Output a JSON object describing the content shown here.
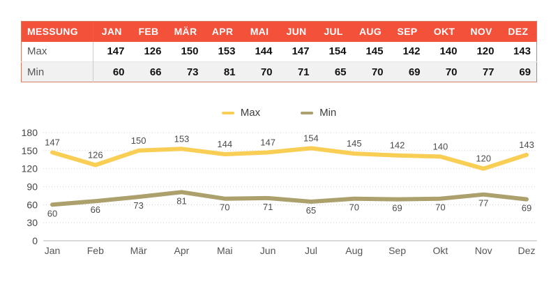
{
  "table": {
    "header": [
      "MESSUNG",
      "JAN",
      "FEB",
      "MÄR",
      "APR",
      "MAI",
      "JUN",
      "JUL",
      "AUG",
      "SEP",
      "OKT",
      "NOV",
      "DEZ"
    ],
    "rows": [
      {
        "label": "Max",
        "values": [
          147,
          126,
          150,
          153,
          144,
          147,
          154,
          145,
          142,
          140,
          120,
          143
        ]
      },
      {
        "label": "Min",
        "values": [
          60,
          66,
          73,
          81,
          70,
          71,
          65,
          70,
          69,
          70,
          77,
          69
        ]
      }
    ]
  },
  "legend": [
    {
      "label": "Max",
      "color": "#f9ce55"
    },
    {
      "label": "Min",
      "color": "#aca06c"
    }
  ],
  "chart_data": {
    "type": "line",
    "categories": [
      "Jan",
      "Feb",
      "Mär",
      "Apr",
      "Mai",
      "Jun",
      "Jul",
      "Aug",
      "Sep",
      "Okt",
      "Nov",
      "Dez"
    ],
    "series": [
      {
        "name": "Max",
        "color": "#f9ce55",
        "values": [
          147,
          126,
          150,
          153,
          144,
          147,
          154,
          145,
          142,
          140,
          120,
          143
        ],
        "labels": "above"
      },
      {
        "name": "Min",
        "color": "#aca06c",
        "values": [
          60,
          66,
          73,
          81,
          70,
          71,
          65,
          70,
          69,
          70,
          77,
          69
        ],
        "labels": "below"
      }
    ],
    "title": "",
    "xlabel": "",
    "ylabel": "",
    "ylim": [
      0,
      180
    ],
    "yticks": [
      0,
      30,
      60,
      90,
      120,
      150,
      180
    ],
    "grid": true,
    "legend_position": "top-center"
  },
  "colors": {
    "header_bg": "#f4513b",
    "header_text": "#ffffff",
    "alt_row_bg": "#f1f1f1",
    "table_border": "#d57c63",
    "max_line": "#f9ce55",
    "min_line": "#aca06c",
    "gridline": "#cccccc",
    "axis_line": "#b5b5b5"
  }
}
